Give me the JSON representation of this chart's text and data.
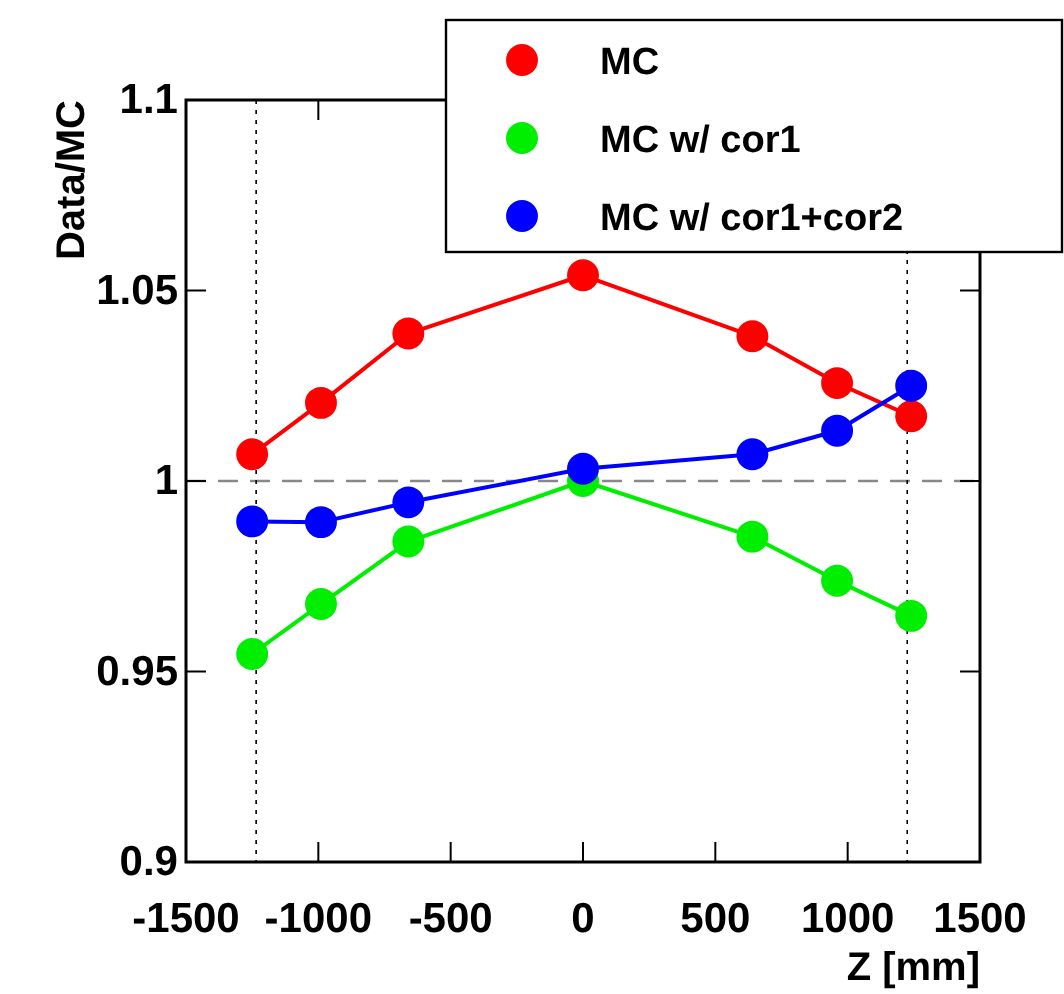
{
  "chart_data": {
    "type": "line",
    "xlabel": "Z [mm]",
    "ylabel": "Data/MC",
    "xlim": [
      -1500,
      1500
    ],
    "xticks": [
      -1500,
      -1000,
      -500,
      0,
      500,
      1000,
      1500
    ],
    "ylim": [
      0.9,
      1.1
    ],
    "yticks": [
      0.9,
      0.95,
      1,
      1.05,
      1.1
    ],
    "marker": "circle",
    "grid": false,
    "legend": "top right",
    "ref_lines": [
      {
        "axis": "y",
        "value": 1,
        "color": "#888888",
        "line_style": "dashed"
      },
      {
        "axis": "x",
        "value": -1235,
        "color": "#000000",
        "line_style": "dotted"
      },
      {
        "axis": "x",
        "value": 1225,
        "color": "#000000",
        "line_style": "dotted"
      }
    ],
    "x": [
      -1250,
      -990,
      -660,
      0,
      640,
      960,
      1240
    ],
    "series": [
      {
        "name": "MC",
        "color": "#ff0000",
        "values": [
          1.007,
          1.0205,
          1.0387,
          1.054,
          1.038,
          1.0257,
          1.017
        ]
      },
      {
        "name": "MC w/ cor1",
        "color": "#00ee00",
        "values": [
          0.9546,
          0.9677,
          0.9841,
          1.0,
          0.9854,
          0.9738,
          0.9646
        ]
      },
      {
        "name": "MC w/ cor1+cor2",
        "color": "#0000ff",
        "values": [
          0.9894,
          0.9892,
          0.9944,
          1.0032,
          1.007,
          1.0132,
          1.025
        ]
      }
    ]
  }
}
